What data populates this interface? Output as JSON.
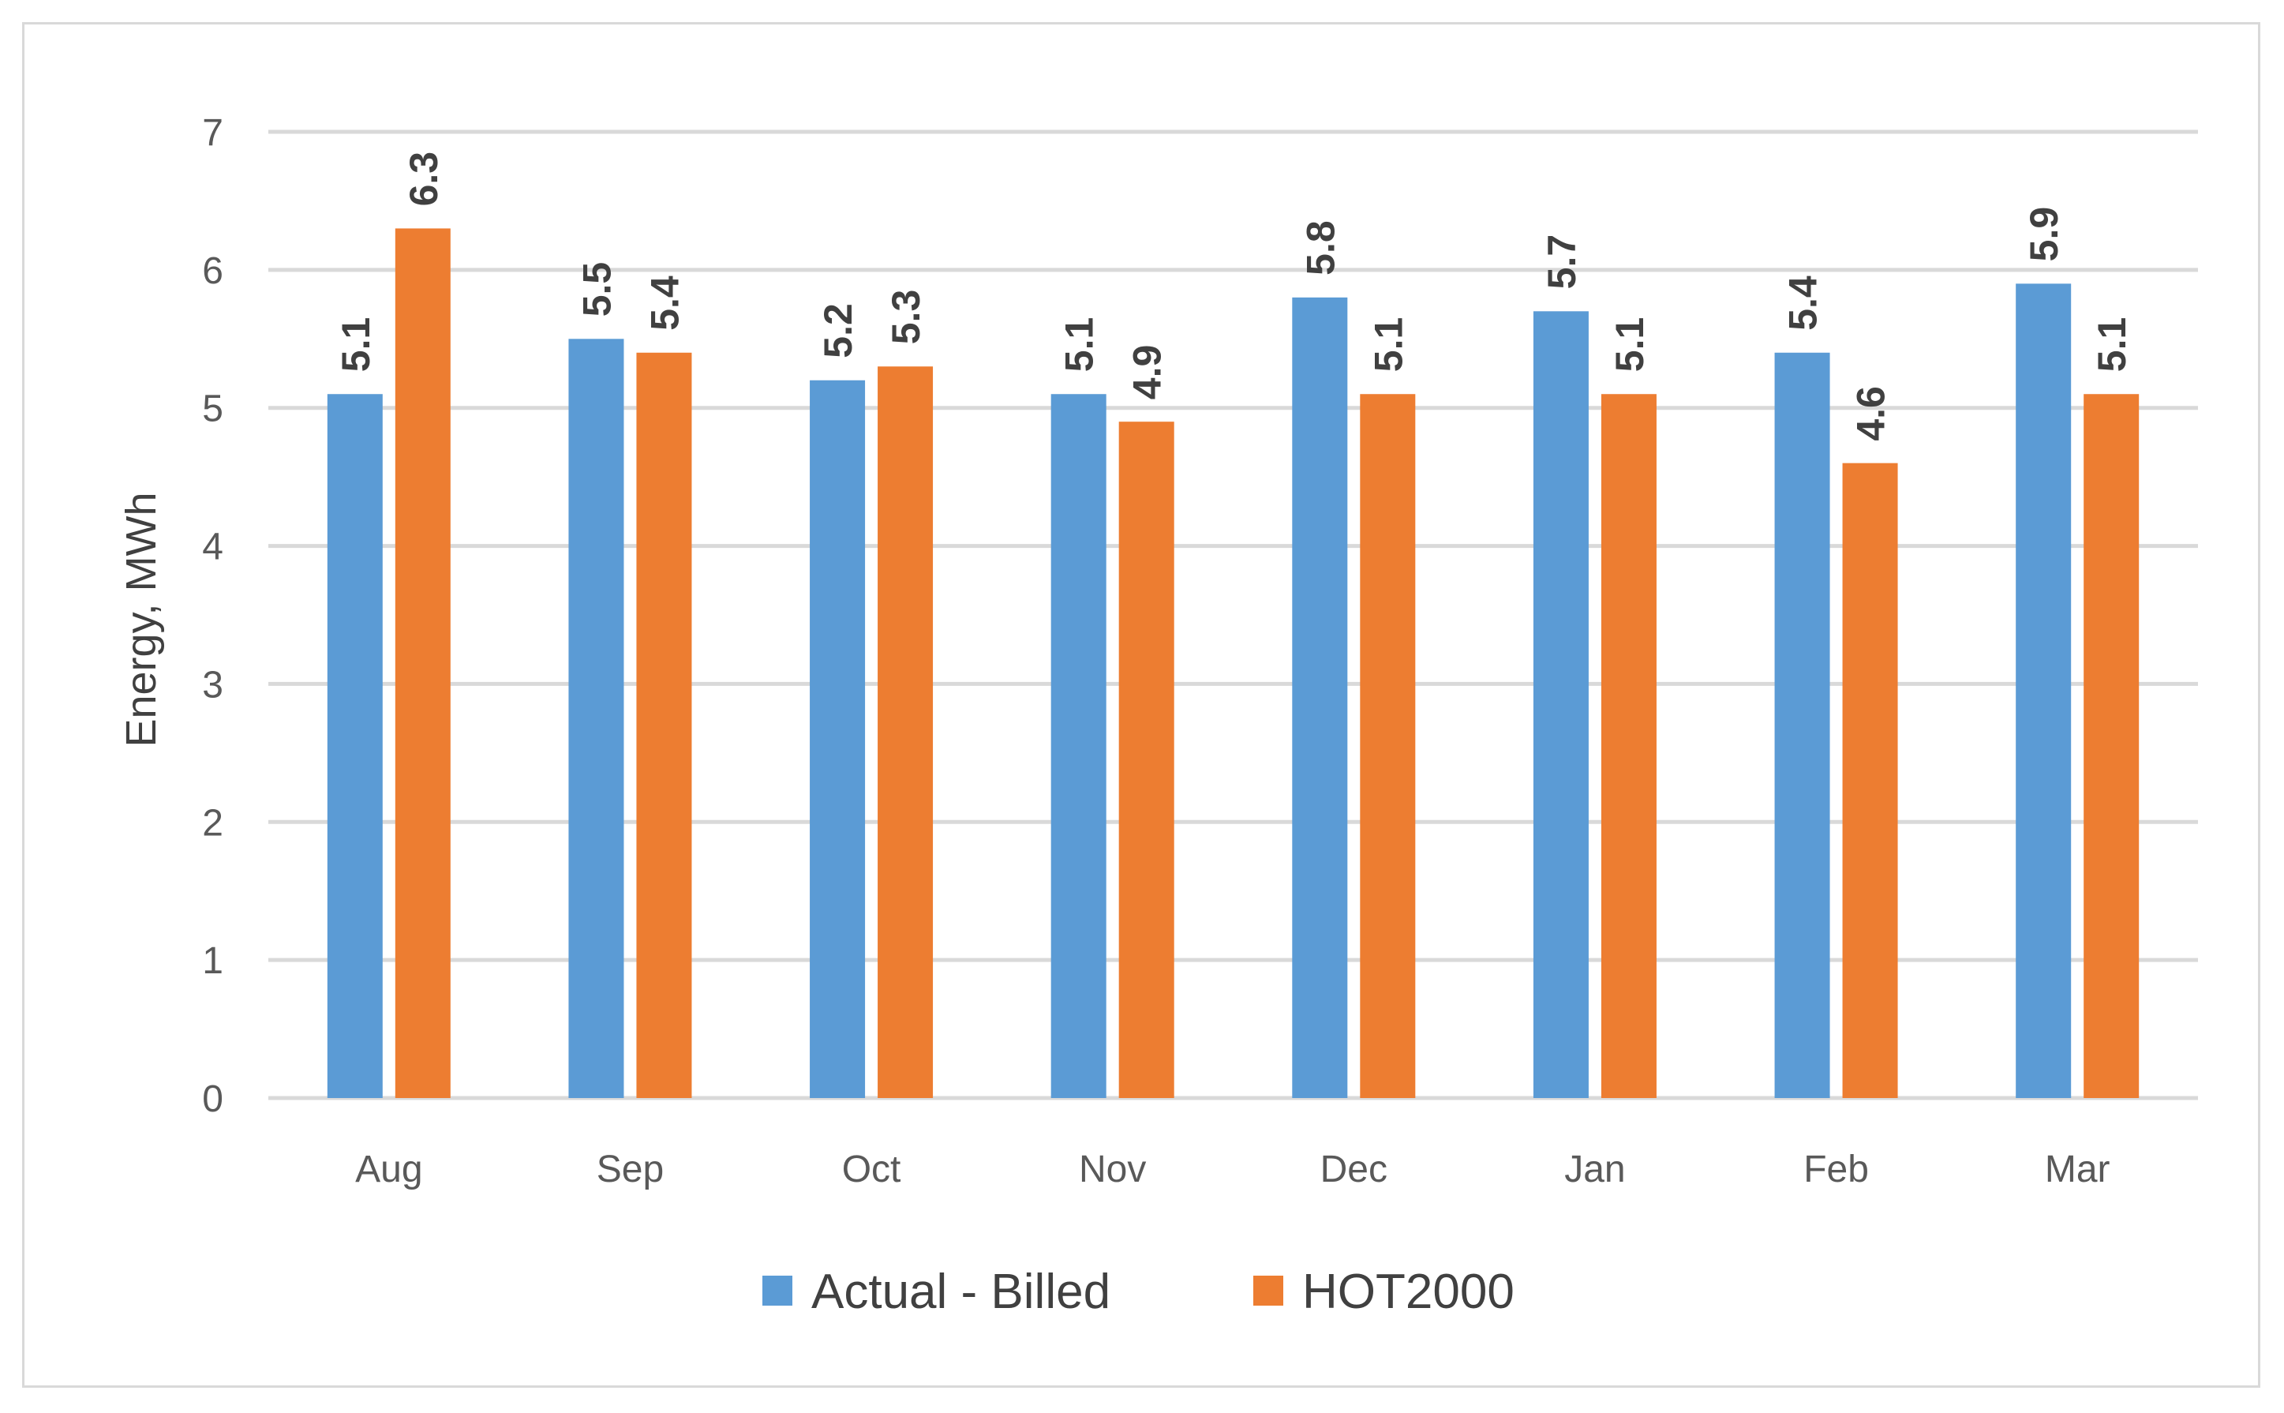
{
  "chart_data": {
    "type": "bar",
    "categories": [
      "Aug",
      "Sep",
      "Oct",
      "Nov",
      "Dec",
      "Jan",
      "Feb",
      "Mar"
    ],
    "series": [
      {
        "name": "Actual - Billed",
        "color": "#5b9bd5",
        "values": [
          5.1,
          5.5,
          5.2,
          5.1,
          5.8,
          5.7,
          5.4,
          5.9
        ]
      },
      {
        "name": "HOT2000",
        "color": "#ed7d31",
        "values": [
          6.3,
          5.4,
          5.3,
          4.9,
          5.1,
          5.1,
          4.6,
          5.1
        ]
      }
    ],
    "ylabel": "Energy, MWh",
    "ylim": [
      0,
      7
    ],
    "yticks": [
      "0",
      "1",
      "2",
      "3",
      "4",
      "5",
      "6",
      "7"
    ],
    "grid": true,
    "legend_position": "bottom",
    "gridline_color": "#d9d9d9"
  }
}
